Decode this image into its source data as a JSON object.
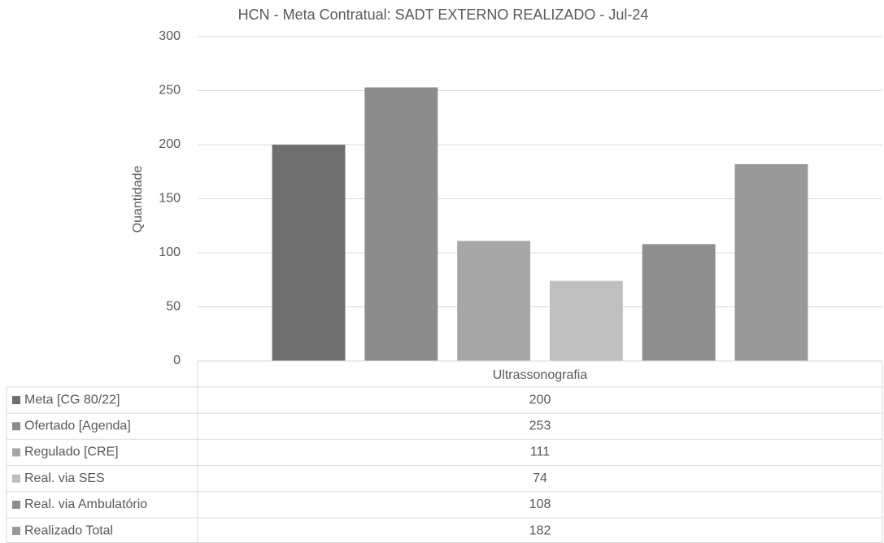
{
  "chart_data": {
    "type": "bar",
    "title": "HCN - Meta Contratual: SADT EXTERNO REALIZADO - Jul-24",
    "y_label": "Quantidade",
    "categories": [
      "Ultrassonografia"
    ],
    "series": [
      {
        "name": "Meta [CG 80/22]",
        "color": "#6f6f6f",
        "values": [
          200
        ]
      },
      {
        "name": "Ofertado [Agenda]",
        "color": "#8c8c8c",
        "values": [
          253
        ]
      },
      {
        "name": "Regulado [CRE]",
        "color": "#a6a6a6",
        "values": [
          111
        ]
      },
      {
        "name": "Real. via SES",
        "color": "#bfbfbf",
        "values": [
          74
        ]
      },
      {
        "name": "Real. via Ambulatório",
        "color": "#8e8e8e",
        "values": [
          108
        ]
      },
      {
        "name": "Realizado Total",
        "color": "#999999",
        "values": [
          182
        ]
      }
    ],
    "ylim": [
      0,
      300
    ],
    "yticks": [
      0,
      50,
      100,
      150,
      200,
      250,
      300
    ],
    "grid": true
  }
}
